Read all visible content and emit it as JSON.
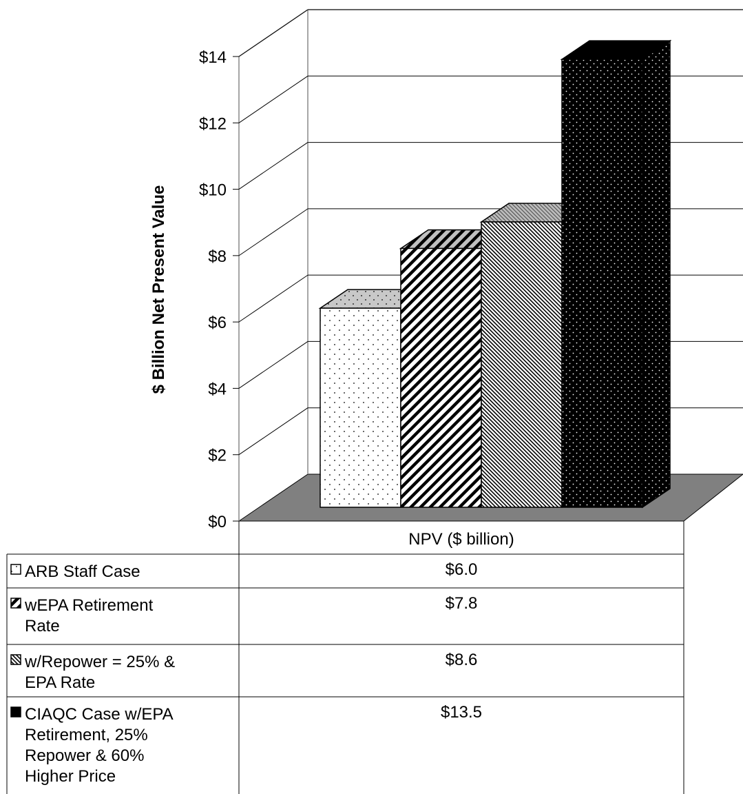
{
  "chart_data": {
    "type": "bar",
    "style": "3d-clustered",
    "categories": [
      "NPV ($ billion)"
    ],
    "series": [
      {
        "name": "ARB Staff Case",
        "values": [
          6.0
        ],
        "label": "$6.0",
        "pattern": "light-dots",
        "legend_lines": [
          "ARB Staff Case"
        ]
      },
      {
        "name": "wEPA Retirement Rate",
        "values": [
          7.8
        ],
        "label": "$7.8",
        "pattern": "wide-diagonal",
        "legend_lines": [
          "wEPA Retirement",
          "Rate"
        ]
      },
      {
        "name": "w/Repower = 25% & EPA Rate",
        "values": [
          8.6
        ],
        "label": "$8.6",
        "pattern": "fine-diagonal",
        "legend_lines": [
          "w/Repower = 25% &",
          "EPA Rate"
        ]
      },
      {
        "name": "CIAQC Case w/EPA Retirement, 25% Repower & 60% Higher Price",
        "values": [
          13.5
        ],
        "label": "$13.5",
        "pattern": "dark-dots",
        "legend_lines": [
          "CIAQC Case w/EPA",
          "Retirement, 25%",
          "Repower & 60%",
          "Higher Price"
        ]
      }
    ],
    "ylabel": "$ Billion Net Present Value",
    "yticks": [
      "$0",
      "$2",
      "$4",
      "$6",
      "$8",
      "$10",
      "$12",
      "$14"
    ],
    "ylim": [
      0,
      14
    ],
    "grid": true,
    "legend": "data-table-below",
    "colors": {
      "floor": "#808080",
      "bar_outline": "#000000",
      "grid": "#000000"
    }
  }
}
